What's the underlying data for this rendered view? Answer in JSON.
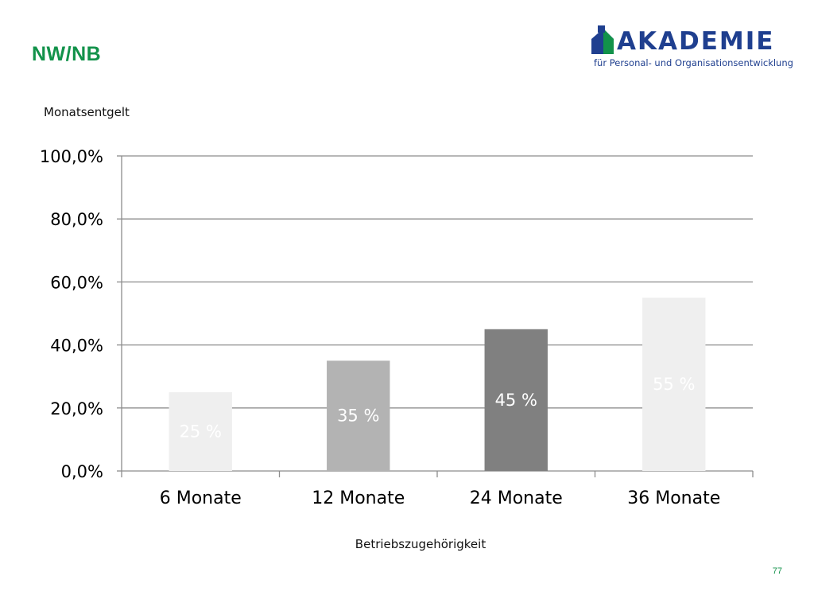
{
  "header": {
    "title": "NW/NB",
    "logo_name": "AKADEMIE",
    "logo_subtitle": "für Personal- und Organisationsentwicklung",
    "logo_icon": "house-logo-icon"
  },
  "footer": {
    "page_number": "77"
  },
  "colors": {
    "title_green": "#12924a",
    "logo_blue": "#1f3f8f",
    "logo_green": "#12924a",
    "grid": "#8c8c8c"
  },
  "chart_data": {
    "type": "bar",
    "ylabel": "Monatsentgelt",
    "xlabel": "Betriebszugehörigkeit",
    "categories": [
      "6 Monate",
      "12 Monate",
      "24 Monate",
      "36 Monate"
    ],
    "values": [
      25,
      35,
      45,
      55
    ],
    "data_labels": [
      "25 %",
      "35 %",
      "45 %",
      "55 %"
    ],
    "bar_colors": [
      "#efefef",
      "#b3b3b3",
      "#808080",
      "#efefef"
    ],
    "ylim": [
      0,
      100
    ],
    "yticks": [
      0,
      20,
      40,
      60,
      80,
      100
    ],
    "ytick_labels": [
      "0,0%",
      "20,0%",
      "40,0%",
      "60,0%",
      "80,0%",
      "100,0%"
    ],
    "grid": true,
    "legend": "none"
  }
}
